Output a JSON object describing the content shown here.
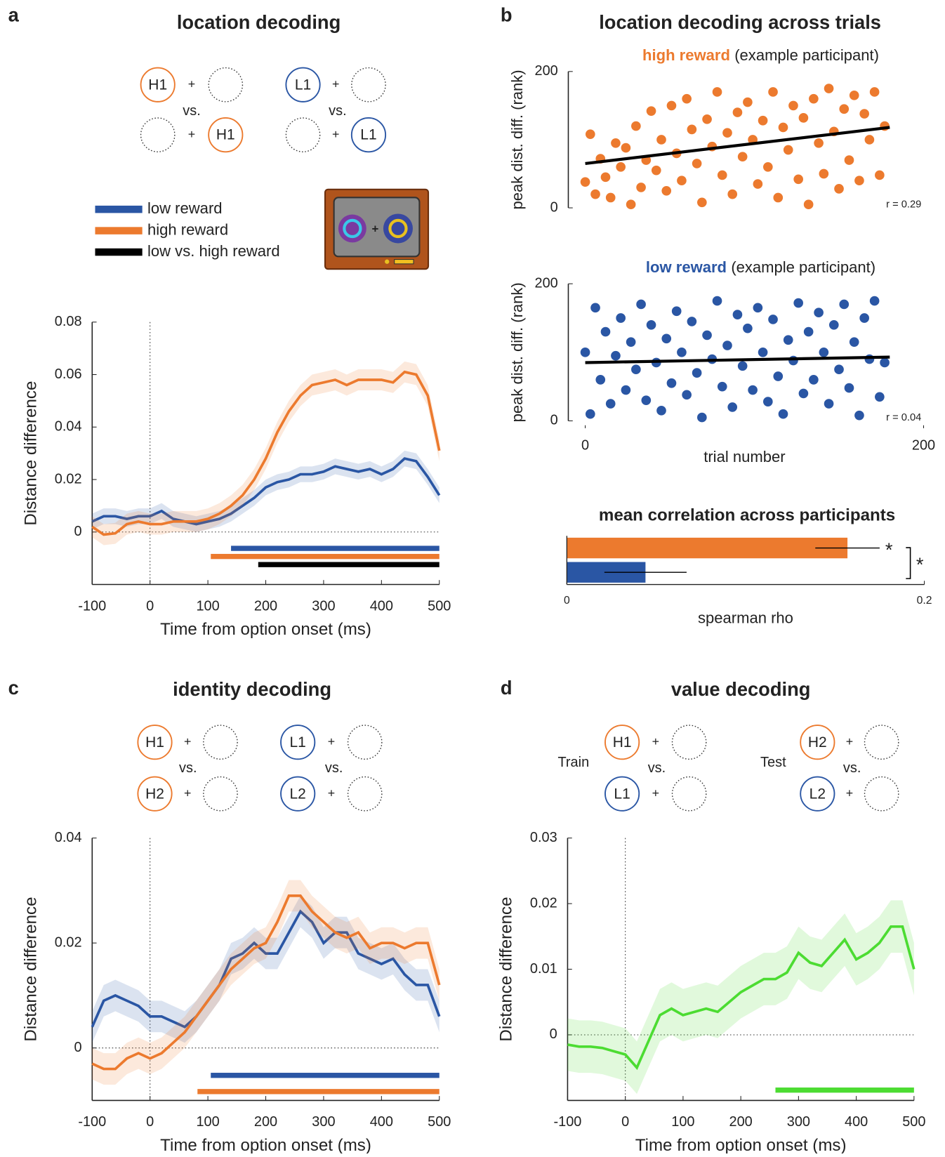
{
  "panels": [
    {
      "label": "a",
      "title": "location decoding"
    },
    {
      "label": "b",
      "title": "location decoding across trials"
    },
    {
      "label": "c",
      "title": "identity decoding"
    },
    {
      "label": "d",
      "title": "value decoding"
    }
  ],
  "symbols": {
    "plus": "+",
    "vs": "vs."
  },
  "diagrams": [
    {
      "groups": [
        {
          "color": "#ec7a2e",
          "rows": [
            [
              "H1",
              null
            ],
            [
              null,
              "H1"
            ]
          ]
        },
        {
          "color": "#2a56a4",
          "rows": [
            [
              "L1",
              null
            ],
            [
              null,
              "L1"
            ]
          ]
        }
      ]
    },
    {
      "groups": [
        {
          "color": "#ec7a2e",
          "rows": [
            [
              "H1",
              null
            ],
            [
              "H2",
              null
            ]
          ]
        },
        {
          "color": "#2a56a4",
          "rows": [
            [
              "L1",
              null
            ],
            [
              "L2",
              null
            ]
          ]
        }
      ]
    },
    {
      "groups": [
        {
          "side": "Train",
          "rows": [
            [
              {
                "text": "H1",
                "color": "#ec7a2e"
              },
              null
            ],
            [
              {
                "text": "L1",
                "color": "#2a56a4"
              },
              null
            ]
          ]
        },
        {
          "side": "Test",
          "rows": [
            [
              {
                "text": "H2",
                "color": "#ec7a2e"
              },
              null
            ],
            [
              {
                "text": "L2",
                "color": "#2a56a4"
              },
              null
            ]
          ]
        }
      ]
    }
  ],
  "chart_data": [
    {
      "type": "line",
      "xlabel": "Time from option onset (ms)",
      "ylabel": "Distance difference",
      "xlim": [
        -100,
        500
      ],
      "ylim": [
        -0.02,
        0.08
      ],
      "xticks": [
        -100,
        0,
        100,
        200,
        300,
        400,
        500
      ],
      "yticks": [
        0,
        0.02,
        0.04,
        0.06,
        0.08
      ],
      "x": [
        -100,
        -80,
        -60,
        -40,
        -20,
        0,
        20,
        40,
        60,
        80,
        100,
        120,
        140,
        160,
        180,
        200,
        220,
        240,
        260,
        280,
        300,
        320,
        340,
        360,
        380,
        400,
        420,
        440,
        460,
        480,
        500
      ],
      "series": [
        {
          "name": "low reward",
          "color": "#2a56a4",
          "error": 0.003,
          "values": [
            0.004,
            0.006,
            0.006,
            0.005,
            0.006,
            0.006,
            0.008,
            0.005,
            0.004,
            0.003,
            0.004,
            0.005,
            0.007,
            0.01,
            0.013,
            0.017,
            0.019,
            0.02,
            0.022,
            0.022,
            0.023,
            0.025,
            0.024,
            0.023,
            0.024,
            0.022,
            0.024,
            0.028,
            0.027,
            0.021,
            0.014
          ]
        },
        {
          "name": "high reward",
          "color": "#ec7a2e",
          "error": 0.004,
          "values": [
            0.002,
            -0.001,
            -0.0005,
            0.003,
            0.004,
            0.003,
            0.003,
            0.004,
            0.004,
            0.004,
            0.005,
            0.007,
            0.01,
            0.014,
            0.02,
            0.028,
            0.038,
            0.046,
            0.052,
            0.056,
            0.057,
            0.058,
            0.056,
            0.058,
            0.058,
            0.058,
            0.057,
            0.061,
            0.06,
            0.052,
            0.031
          ]
        }
      ],
      "sig_bars": [
        {
          "color": "#2a56a4",
          "range": [
            140,
            500
          ]
        },
        {
          "color": "#ec7a2e",
          "range": [
            105,
            500
          ]
        },
        {
          "name": "low vs. high reward",
          "color": "#000000",
          "range": [
            187,
            500
          ]
        }
      ]
    },
    {
      "type": "scatter",
      "title": "high reward",
      "subtitle": "(example participant)",
      "ylabel": "peak dist. diff. (rank)",
      "xlim": [
        -10,
        200
      ],
      "ylim": [
        0,
        200
      ],
      "yticks": [
        0,
        200
      ],
      "color": "#ec7a2e",
      "x": [
        0,
        3,
        6,
        9,
        12,
        15,
        18,
        21,
        24,
        27,
        30,
        33,
        36,
        39,
        42,
        45,
        48,
        51,
        54,
        57,
        60,
        63,
        66,
        69,
        72,
        75,
        78,
        81,
        84,
        87,
        90,
        93,
        96,
        99,
        102,
        105,
        108,
        111,
        114,
        117,
        120,
        123,
        126,
        129,
        132,
        135,
        138,
        141,
        144,
        147,
        150,
        153,
        156,
        159,
        162,
        165,
        168,
        171,
        174,
        177
      ],
      "y": [
        38,
        108,
        20,
        72,
        45,
        15,
        95,
        60,
        88,
        5,
        120,
        30,
        70,
        142,
        55,
        100,
        25,
        150,
        80,
        40,
        160,
        115,
        65,
        8,
        130,
        90,
        170,
        48,
        110,
        20,
        140,
        75,
        155,
        100,
        35,
        128,
        60,
        170,
        15,
        118,
        85,
        150,
        42,
        132,
        5,
        160,
        95,
        50,
        175,
        112,
        28,
        145,
        70,
        165,
        40,
        138,
        100,
        170,
        48,
        120
      ],
      "fit": {
        "x": [
          0,
          180
        ],
        "y": [
          65,
          118
        ]
      },
      "annotation": "r = 0.29"
    },
    {
      "type": "scatter",
      "title": "low reward",
      "subtitle": "(example participant)",
      "ylabel": "peak dist. diff. (rank)",
      "xlabel": "trial number",
      "xlim": [
        -10,
        200
      ],
      "ylim": [
        0,
        200
      ],
      "xticks": [
        0,
        200
      ],
      "yticks": [
        0,
        200
      ],
      "color": "#2a56a4",
      "x": [
        0,
        3,
        6,
        9,
        12,
        15,
        18,
        21,
        24,
        27,
        30,
        33,
        36,
        39,
        42,
        45,
        48,
        51,
        54,
        57,
        60,
        63,
        66,
        69,
        72,
        75,
        78,
        81,
        84,
        87,
        90,
        93,
        96,
        99,
        102,
        105,
        108,
        111,
        114,
        117,
        120,
        123,
        126,
        129,
        132,
        135,
        138,
        141,
        144,
        147,
        150,
        153,
        156,
        159,
        162,
        165,
        168,
        171,
        174,
        177
      ],
      "y": [
        100,
        10,
        165,
        60,
        130,
        25,
        95,
        150,
        45,
        115,
        75,
        170,
        30,
        140,
        85,
        15,
        120,
        55,
        160,
        100,
        38,
        145,
        70,
        5,
        125,
        90,
        175,
        50,
        110,
        20,
        155,
        80,
        135,
        45,
        165,
        100,
        28,
        148,
        65,
        10,
        118,
        88,
        172,
        40,
        130,
        60,
        158,
        100,
        25,
        140,
        75,
        170,
        48,
        115,
        8,
        150,
        90,
        175,
        35,
        85
      ],
      "fit": {
        "x": [
          0,
          180
        ],
        "y": [
          85,
          93
        ]
      },
      "annotation": "r = 0.04"
    },
    {
      "type": "barh",
      "title": "mean correlation across participants",
      "xlabel": "spearman rho",
      "xlim": [
        0,
        0.2
      ],
      "xticks": [
        0,
        0.2
      ],
      "values": [
        0.157,
        0.044
      ],
      "errors": [
        0.018,
        0.023
      ],
      "colors": [
        "#ec7a2e",
        "#2a56a4"
      ],
      "annotations": [
        "*",
        "*"
      ]
    },
    {
      "type": "line",
      "xlabel": "Time from option onset (ms)",
      "ylabel": "Distance difference",
      "xlim": [
        -100,
        500
      ],
      "ylim": [
        -0.01,
        0.04
      ],
      "xticks": [
        -100,
        0,
        100,
        200,
        300,
        400,
        500
      ],
      "yticks": [
        0,
        0.02,
        0.04
      ],
      "x": [
        -100,
        -80,
        -60,
        -40,
        -20,
        0,
        20,
        40,
        60,
        80,
        100,
        120,
        140,
        160,
        180,
        200,
        220,
        240,
        260,
        280,
        300,
        320,
        340,
        360,
        380,
        400,
        420,
        440,
        460,
        480,
        500
      ],
      "series": [
        {
          "color": "#2a56a4",
          "error": 0.003,
          "values": [
            0.004,
            0.009,
            0.01,
            0.009,
            0.008,
            0.006,
            0.006,
            0.005,
            0.004,
            0.006,
            0.009,
            0.012,
            0.017,
            0.018,
            0.02,
            0.018,
            0.018,
            0.022,
            0.026,
            0.024,
            0.02,
            0.022,
            0.022,
            0.018,
            0.017,
            0.016,
            0.017,
            0.014,
            0.012,
            0.012,
            0.006
          ]
        },
        {
          "color": "#ec7a2e",
          "error": 0.003,
          "values": [
            -0.003,
            -0.004,
            -0.004,
            -0.002,
            -0.001,
            -0.002,
            -0.001,
            0.001,
            0.003,
            0.006,
            0.009,
            0.012,
            0.015,
            0.017,
            0.019,
            0.02,
            0.024,
            0.029,
            0.029,
            0.026,
            0.024,
            0.022,
            0.021,
            0.022,
            0.019,
            0.02,
            0.02,
            0.019,
            0.02,
            0.02,
            0.012
          ]
        }
      ],
      "sig_bars": [
        {
          "color": "#2a56a4",
          "range": [
            105,
            500
          ]
        },
        {
          "color": "#ec7a2e",
          "range": [
            82,
            500
          ]
        }
      ]
    },
    {
      "type": "line",
      "xlabel": "Time from option onset (ms)",
      "ylabel": "Distance difference",
      "xlim": [
        -100,
        500
      ],
      "ylim": [
        -0.01,
        0.03
      ],
      "xticks": [
        -100,
        0,
        100,
        200,
        300,
        400,
        500
      ],
      "yticks": [
        0,
        0.01,
        0.02,
        0.03
      ],
      "x": [
        -100,
        -80,
        -60,
        -40,
        -20,
        0,
        20,
        40,
        60,
        80,
        100,
        120,
        140,
        160,
        180,
        200,
        220,
        240,
        260,
        280,
        300,
        320,
        340,
        360,
        380,
        400,
        420,
        440,
        460,
        480,
        500
      ],
      "series": [
        {
          "color": "#4cdc32",
          "error": 0.004,
          "values": [
            -0.0015,
            -0.0018,
            -0.0018,
            -0.002,
            -0.0025,
            -0.003,
            -0.005,
            -0.001,
            0.003,
            0.004,
            0.003,
            0.0035,
            0.004,
            0.0035,
            0.005,
            0.0065,
            0.0075,
            0.0085,
            0.0085,
            0.0095,
            0.0125,
            0.011,
            0.0105,
            0.0125,
            0.0145,
            0.0115,
            0.0125,
            0.014,
            0.0165,
            0.0165,
            0.01
          ]
        }
      ],
      "sig_bars": [
        {
          "color": "#4cdc32",
          "range": [
            260,
            500
          ]
        }
      ]
    }
  ]
}
